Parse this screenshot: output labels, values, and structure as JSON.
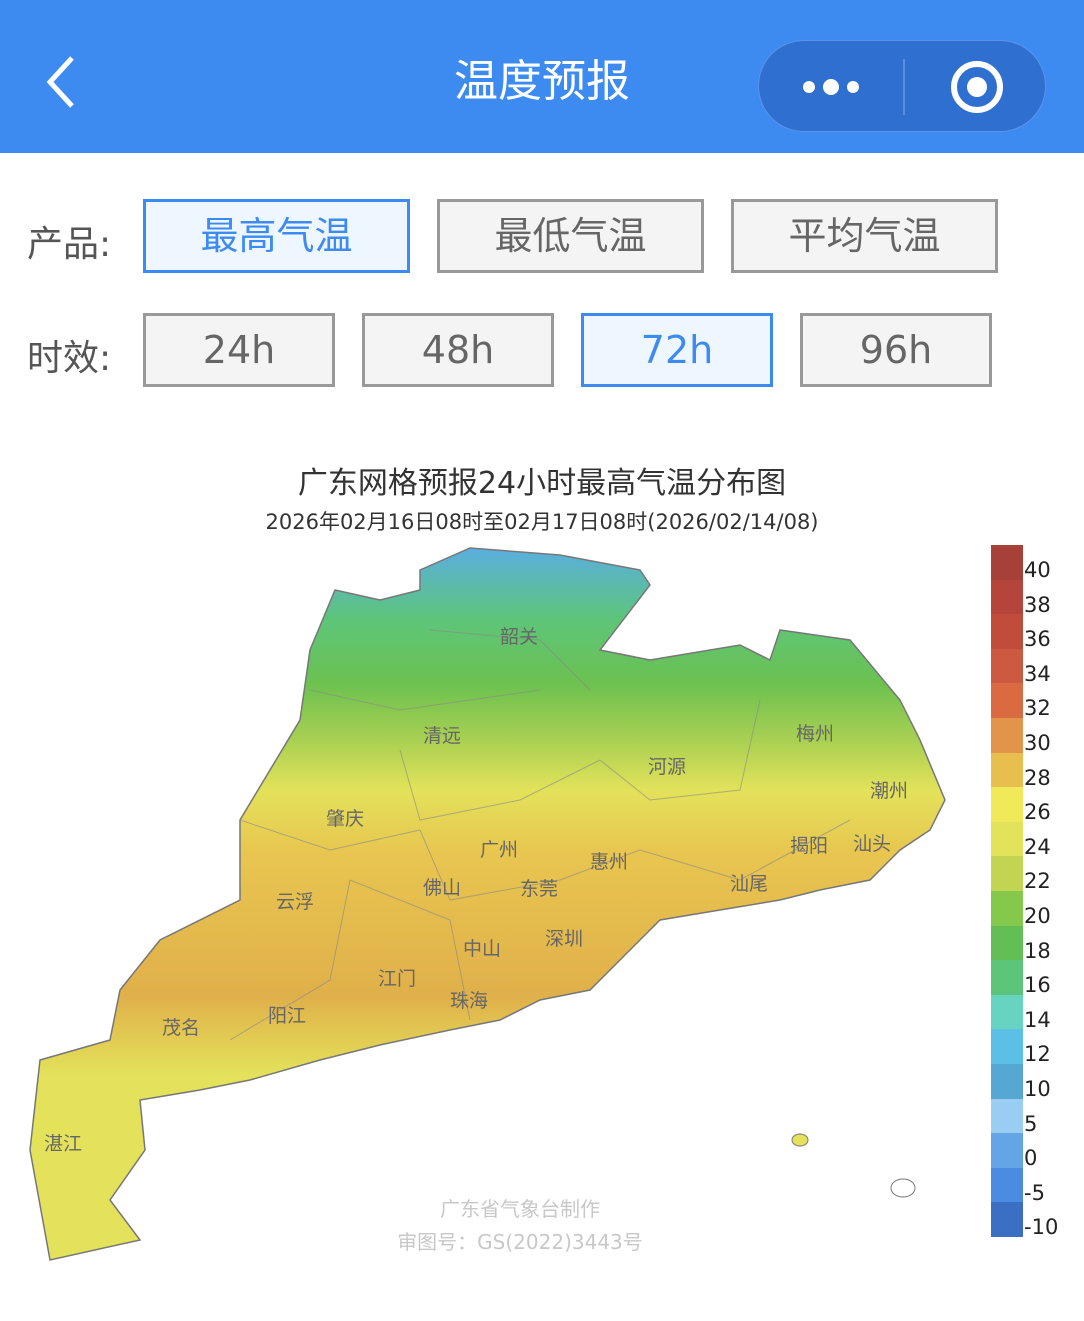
{
  "header": {
    "title": "温度预报",
    "back_icon": "chevron-left-icon",
    "more_icon": "more-dots-icon",
    "close_icon": "target-circle-icon",
    "color": "#3d8bf0"
  },
  "product": {
    "label": "产品:",
    "options": [
      "最高气温",
      "最低气温",
      "平均气温"
    ],
    "selected": "最高气温"
  },
  "period": {
    "label": "时效:",
    "options": [
      "24h",
      "48h",
      "72h",
      "96h"
    ],
    "selected": "72h"
  },
  "map": {
    "title": "广东网格预报24小时最高气温分布图",
    "subtitle": "2026年02月16日08时至02月17日08时(2026/02/14/08)",
    "cities": [
      "韶关",
      "清远",
      "河源",
      "梅州",
      "潮州",
      "肇庆",
      "广州",
      "惠州",
      "揭阳",
      "汕头",
      "佛山",
      "东莞",
      "汕尾",
      "云浮",
      "中山",
      "深圳",
      "江门",
      "珠海",
      "茂名",
      "阳江",
      "湛江"
    ],
    "watermark": [
      "广东省气象台制作",
      "审图号：GS(2022)3443号"
    ],
    "legend": [
      {
        "label": "40",
        "color": "#a8403a"
      },
      {
        "label": "38",
        "color": "#b5443a"
      },
      {
        "label": "36",
        "color": "#c04c3c"
      },
      {
        "label": "34",
        "color": "#cc5a40"
      },
      {
        "label": "32",
        "color": "#d96a42"
      },
      {
        "label": "30",
        "color": "#e2954a"
      },
      {
        "label": "28",
        "color": "#e8bf4e"
      },
      {
        "label": "26",
        "color": "#f0e95a"
      },
      {
        "label": "24",
        "color": "#e3e25a"
      },
      {
        "label": "22",
        "color": "#c2d452"
      },
      {
        "label": "20",
        "color": "#84c84c"
      },
      {
        "label": "18",
        "color": "#63bf55"
      },
      {
        "label": "16",
        "color": "#5dc57a"
      },
      {
        "label": "14",
        "color": "#67d3c0"
      },
      {
        "label": "12",
        "color": "#5cc0e6"
      },
      {
        "label": "10",
        "color": "#56a8d2"
      },
      {
        "label": "5",
        "color": "#99cdf1"
      },
      {
        "label": "0",
        "color": "#64a5e6"
      },
      {
        "label": "-5",
        "color": "#4b8be2"
      },
      {
        "label": "-10",
        "color": "#3b6fc4"
      }
    ]
  }
}
